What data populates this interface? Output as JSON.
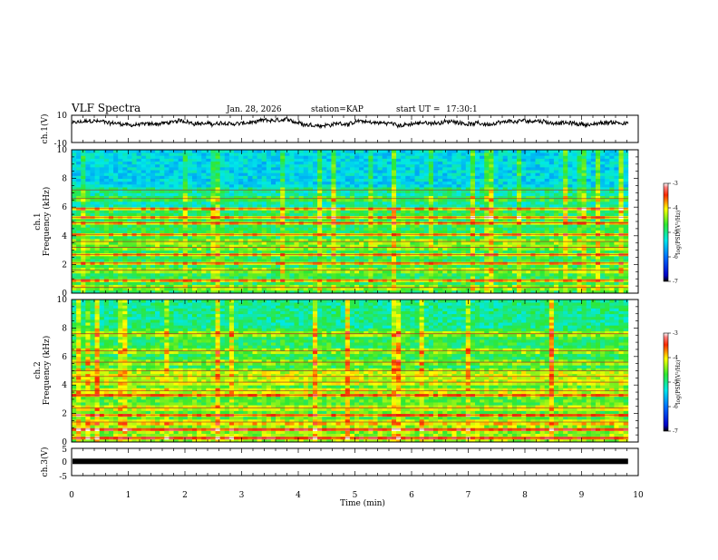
{
  "chart_data": {
    "type": "heatmap",
    "title": "VLF Spectra",
    "header": {
      "date": "Jan. 28, 2026",
      "station": "station=KAP",
      "start": "start UT =",
      "start_time": "17:30:1"
    },
    "x": {
      "label": "Time (min)",
      "range": [
        0,
        10
      ],
      "ticks": [
        "0",
        "1",
        "2",
        "3",
        "4",
        "5",
        "6",
        "7",
        "8",
        "9",
        "10"
      ],
      "data_end": 9.82
    },
    "panels": [
      {
        "kind": "waveform",
        "ylabel": "ch.1(V)",
        "ylim": [
          -10,
          10
        ],
        "yticks": [
          "10",
          "-10"
        ],
        "mean": 4.2,
        "amplitude": 2.8
      },
      {
        "kind": "spectrogram",
        "ylabel_top": "ch.1",
        "ylabel": "Frequency (kHz)",
        "ylim": [
          0,
          10
        ],
        "yticks": [
          "0",
          "2",
          "4",
          "6",
          "8",
          "10"
        ],
        "noise_bands_khz": [
          0.4,
          0.9,
          1.6,
          2.1,
          2.7,
          3.2,
          3.6,
          4.1,
          4.9,
          5.3,
          5.9,
          6.6,
          7.2
        ]
      },
      {
        "kind": "spectrogram",
        "ylabel_top": "ch.2",
        "ylabel": "Frequency (kHz)",
        "ylim": [
          0,
          10
        ],
        "yticks": [
          "0",
          "2",
          "4",
          "6",
          "8",
          "10"
        ],
        "noise_bands_khz": [
          0.3,
          0.9,
          1.4,
          1.9,
          2.4,
          3.3,
          3.6,
          4.2,
          4.6,
          5.0,
          5.6,
          6.4,
          7.6
        ]
      },
      {
        "kind": "waveform",
        "ylabel": "ch.3(V)",
        "ylim": [
          -5,
          5
        ],
        "yticks": [
          "5",
          "0",
          "-5"
        ],
        "mean": 0.0,
        "amplitude": 0.4
      }
    ],
    "colorbar": {
      "label": "log(PSD)(V²/Hz)",
      "range": [
        -7,
        -3
      ],
      "ticks": [
        "-3",
        "-4",
        "-5",
        "-6",
        "-7"
      ]
    }
  }
}
